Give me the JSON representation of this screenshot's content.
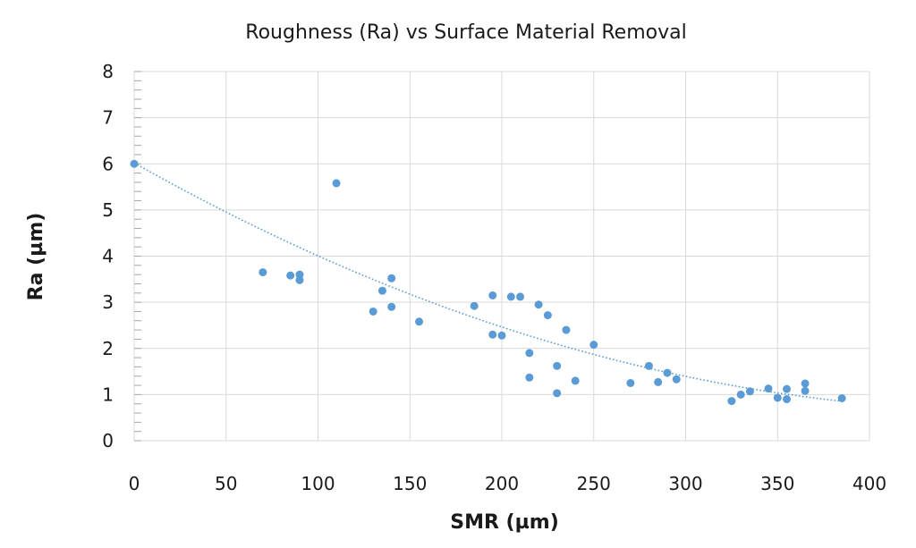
{
  "chart_data": {
    "type": "scatter",
    "title": "Roughness (Ra) vs Surface Material Removal",
    "xlabel": "SMR (µm)",
    "ylabel": "Ra (µm)",
    "xlim": [
      0,
      400
    ],
    "ylim": [
      0,
      8
    ],
    "x_ticks": [
      0,
      50,
      100,
      150,
      200,
      250,
      300,
      350,
      400
    ],
    "y_ticks": [
      0,
      1,
      2,
      3,
      4,
      5,
      6,
      7,
      8
    ],
    "grid": true,
    "legend": "none",
    "colors": {
      "points": "#5b9bd5",
      "trendline": "#5b9bd5",
      "grid": "#d9d9d9"
    },
    "trendline": {
      "type": "polynomial-2",
      "style": "dotted",
      "a": 2.36e-05,
      "b": -0.0225,
      "c": 6.02
    },
    "series": [
      {
        "points": [
          [
            0,
            6.0
          ],
          [
            70,
            3.65
          ],
          [
            85,
            3.58
          ],
          [
            90,
            3.6
          ],
          [
            90,
            3.48
          ],
          [
            110,
            5.58
          ],
          [
            130,
            2.8
          ],
          [
            135,
            3.25
          ],
          [
            140,
            3.52
          ],
          [
            140,
            2.9
          ],
          [
            155,
            2.58
          ],
          [
            185,
            2.92
          ],
          [
            195,
            3.15
          ],
          [
            195,
            2.3
          ],
          [
            200,
            2.28
          ],
          [
            205,
            3.12
          ],
          [
            210,
            3.12
          ],
          [
            215,
            1.9
          ],
          [
            215,
            1.37
          ],
          [
            220,
            2.95
          ],
          [
            225,
            2.72
          ],
          [
            230,
            1.62
          ],
          [
            230,
            1.03
          ],
          [
            235,
            2.4
          ],
          [
            240,
            1.3
          ],
          [
            250,
            2.08
          ],
          [
            270,
            1.25
          ],
          [
            280,
            1.62
          ],
          [
            285,
            1.27
          ],
          [
            290,
            1.47
          ],
          [
            295,
            1.33
          ],
          [
            325,
            0.86
          ],
          [
            330,
            1.0
          ],
          [
            335,
            1.07
          ],
          [
            345,
            1.13
          ],
          [
            350,
            0.93
          ],
          [
            355,
            1.12
          ],
          [
            355,
            0.9
          ],
          [
            365,
            1.24
          ],
          [
            365,
            1.08
          ],
          [
            385,
            0.92
          ]
        ]
      }
    ]
  }
}
